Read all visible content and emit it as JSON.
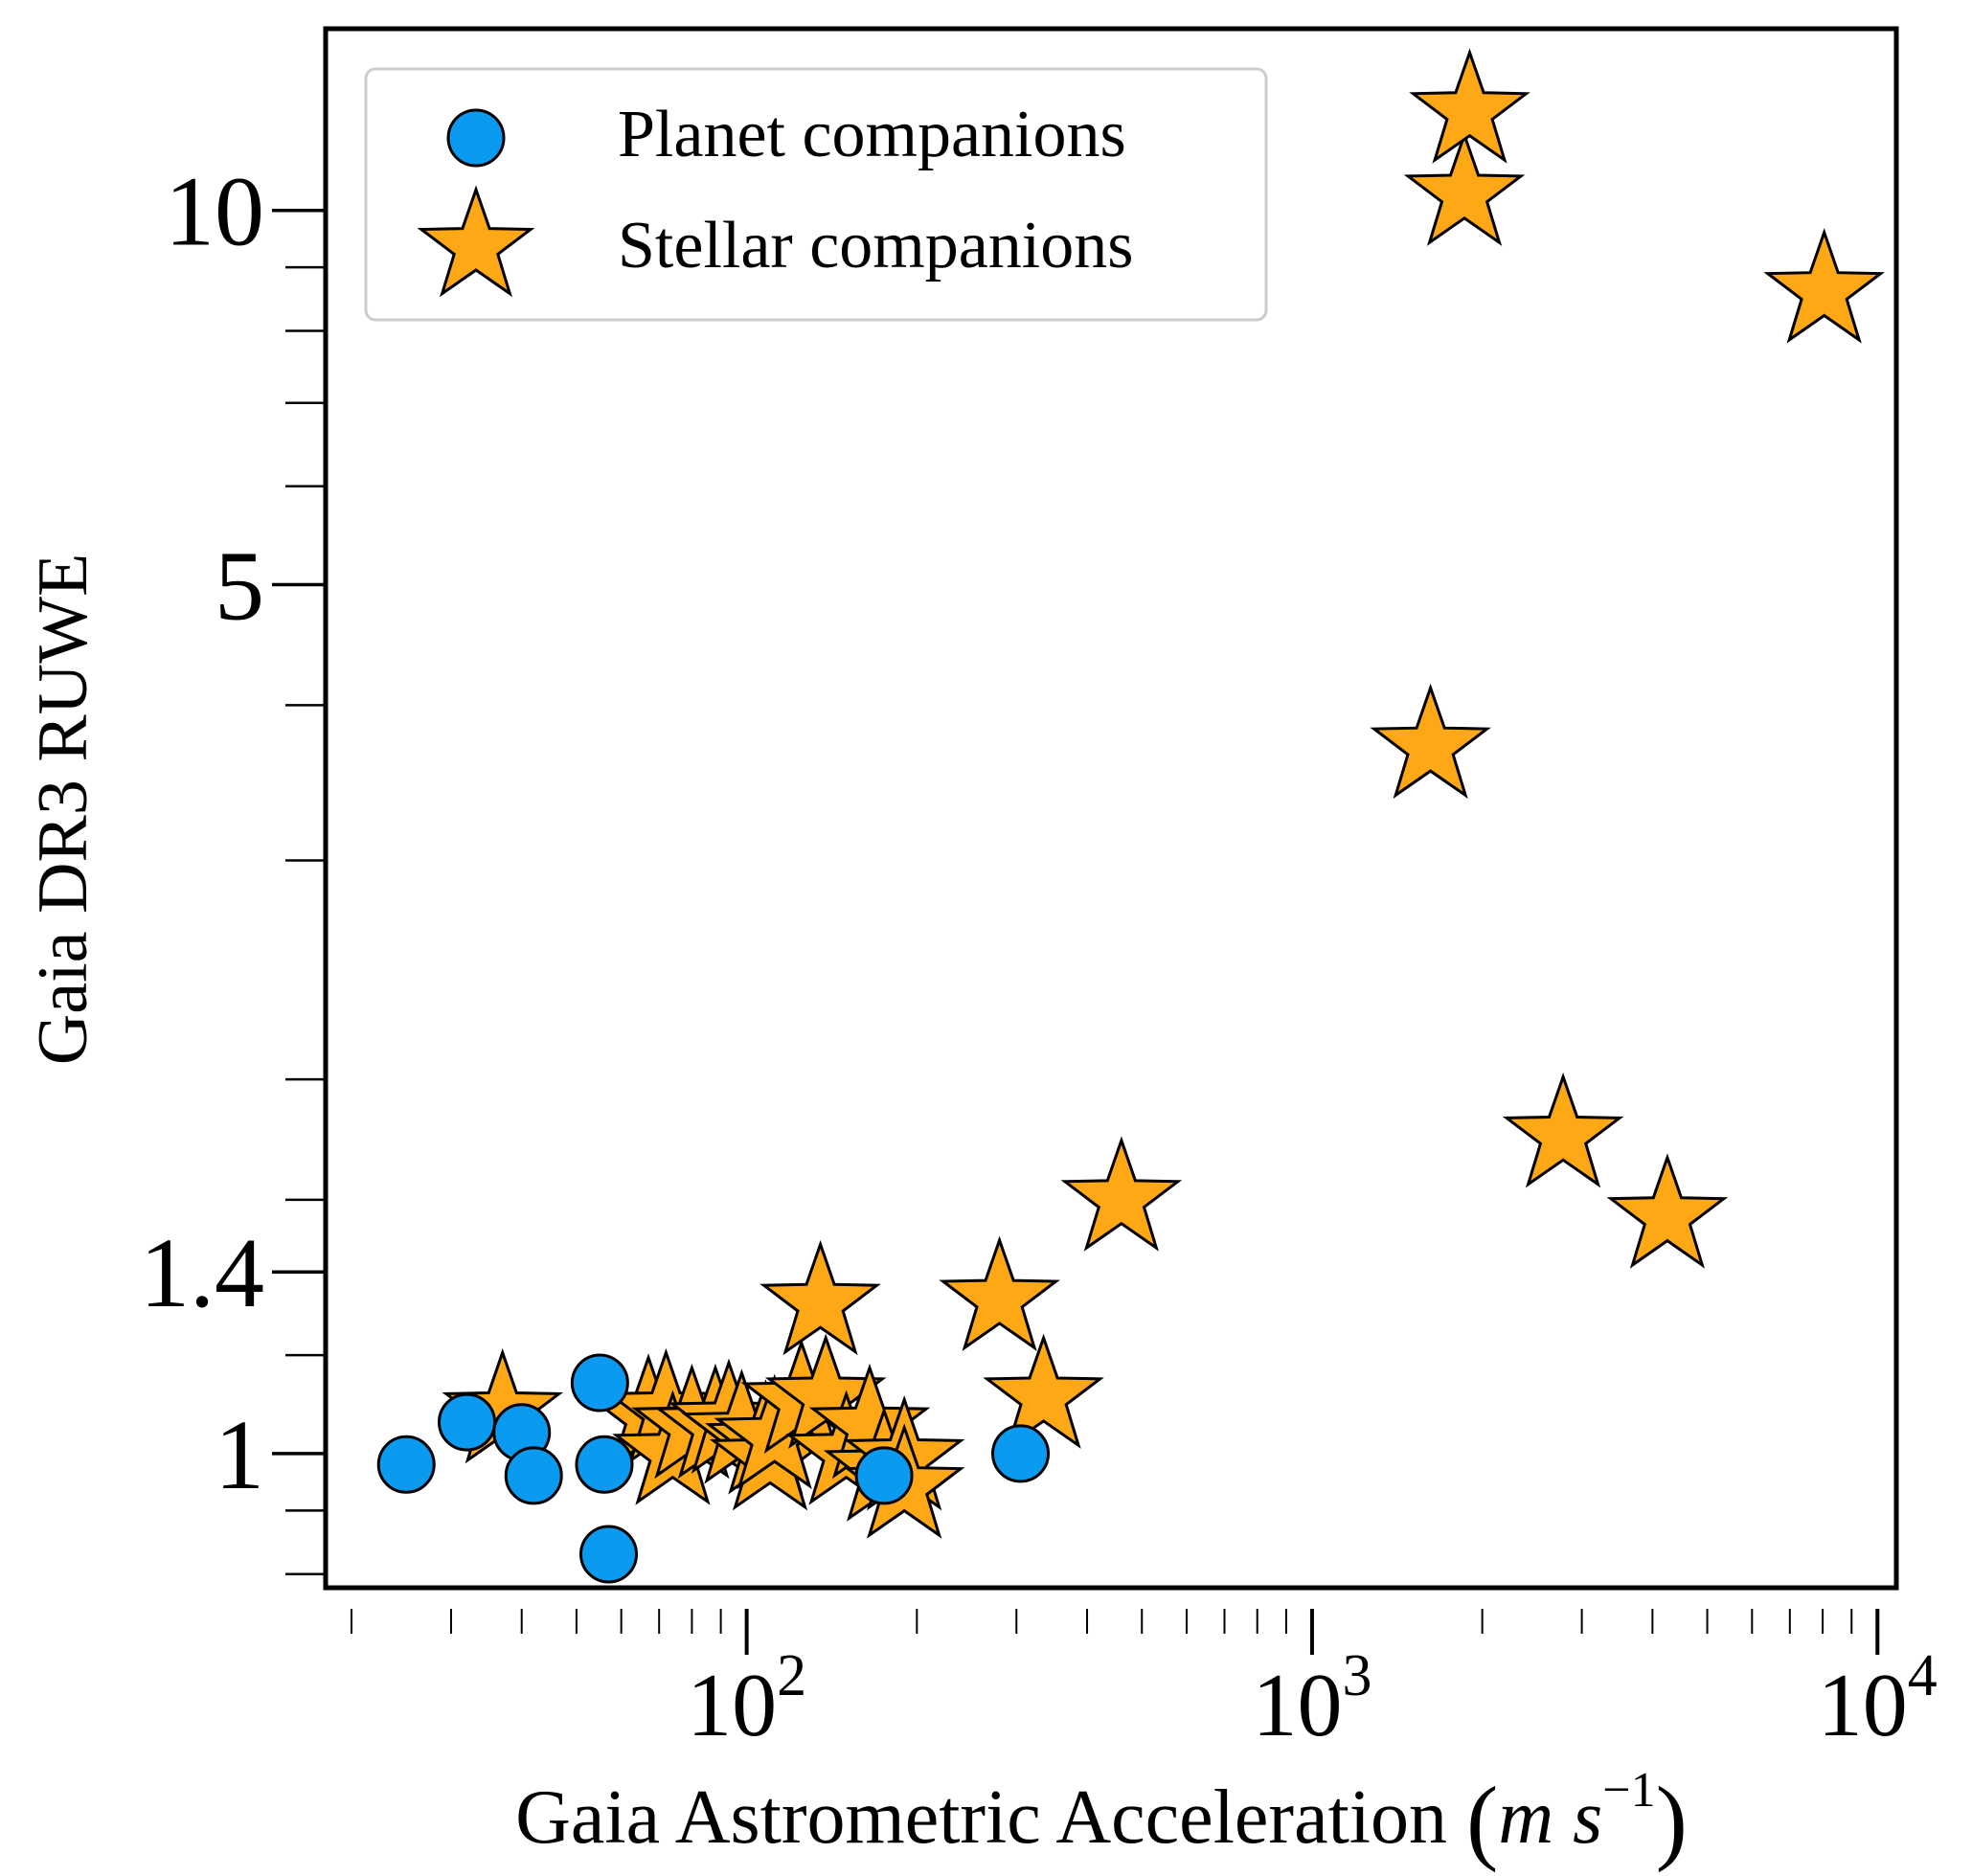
{
  "chart_data": {
    "type": "scatter",
    "title": "",
    "xlabel": "Gaia Astrometric Acceleration",
    "xlabel_unit": {
      "base": "m s",
      "exponent": "−1"
    },
    "ylabel": "Gaia DR3 RUWE",
    "x_scale": "log",
    "y_scale": "log",
    "xlim": [
      18,
      10800
    ],
    "ylim": [
      0.78,
      14.0
    ],
    "x_ticks": [
      {
        "value": 100,
        "label": "10",
        "exponent": "2"
      },
      {
        "value": 1000,
        "label": "10",
        "exponent": "3"
      },
      {
        "value": 10000,
        "label": "10",
        "exponent": "4"
      }
    ],
    "y_ticks": [
      {
        "value": 1,
        "label": "1"
      },
      {
        "value": 1.4,
        "label": "1.4"
      },
      {
        "value": 5,
        "label": "5"
      },
      {
        "value": 10,
        "label": "10"
      }
    ],
    "grid": false,
    "legend_position": "top-left",
    "colors": {
      "planet": "#0a9bf0",
      "stellar": "#ffa816",
      "edge": "#000000"
    },
    "series": [
      {
        "name": "Stellar companions",
        "marker": "star",
        "points": [
          [
            37,
            1.08
          ],
          [
            67,
            1.07
          ],
          [
            72,
            1.08
          ],
          [
            74,
            1.0
          ],
          [
            80,
            1.05
          ],
          [
            88,
            1.05
          ],
          [
            93,
            1.06
          ],
          [
            98,
            1.04
          ],
          [
            108,
            1.02
          ],
          [
            110,
            0.99
          ],
          [
            112,
            1.03
          ],
          [
            125,
            1.1
          ],
          [
            135,
            1.32
          ],
          [
            138,
            1.11
          ],
          [
            150,
            1.0
          ],
          [
            165,
            1.05
          ],
          [
            175,
            0.97
          ],
          [
            190,
            0.99
          ],
          [
            190,
            0.94
          ],
          [
            280,
            1.33
          ],
          [
            335,
            1.11
          ],
          [
            460,
            1.6
          ],
          [
            1620,
            3.7
          ],
          [
            1860,
            10.3
          ],
          [
            1900,
            12.0
          ],
          [
            2780,
            1.8
          ],
          [
            4250,
            1.55
          ],
          [
            8050,
            8.6
          ]
        ]
      },
      {
        "name": "Planet companions",
        "marker": "circle",
        "points": [
          [
            25,
            0.98
          ],
          [
            32,
            1.06
          ],
          [
            40,
            1.04
          ],
          [
            42,
            0.96
          ],
          [
            55,
            1.14
          ],
          [
            56,
            0.98
          ],
          [
            57,
            0.83
          ],
          [
            175,
            0.96
          ],
          [
            305,
            1.0
          ]
        ]
      }
    ]
  }
}
